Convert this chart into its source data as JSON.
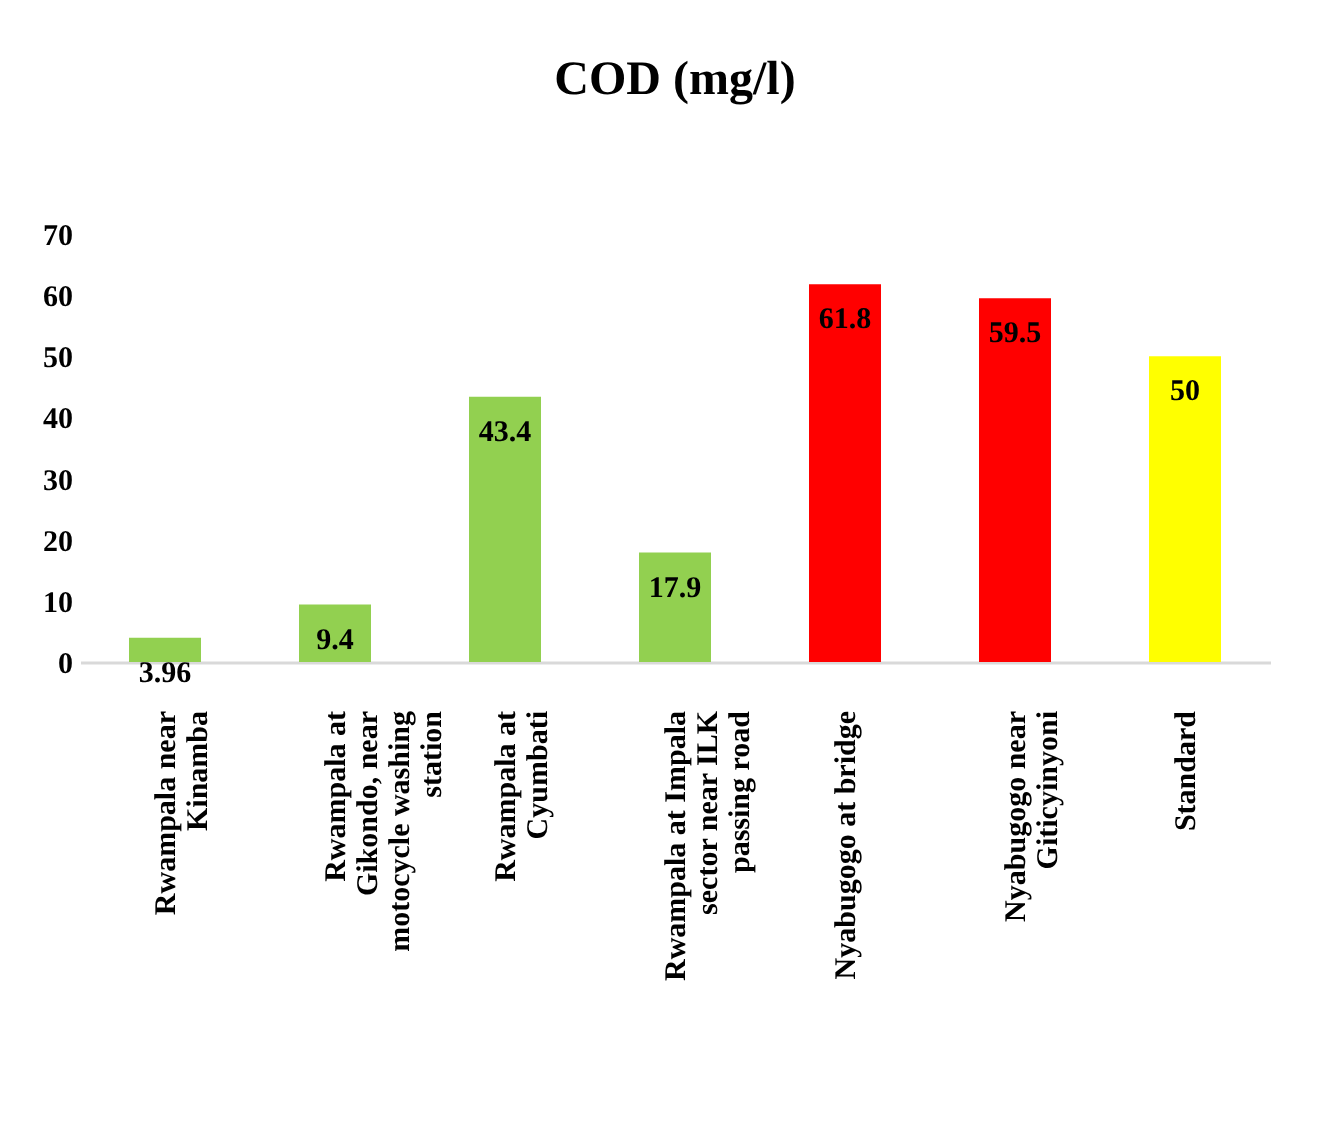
{
  "chart_data": {
    "type": "bar",
    "title": "COD (mg/l)",
    "categories": [
      "Rwampala near Kinamba",
      "Rwampala at Gikondo, near motocycle washing station",
      "Rwampala at Cyumbati",
      "Rwampala at Impala sector near ILK passing road",
      "Nyabugogo at bridge",
      "Nyabugogo near Giticyinyoni",
      "Standard"
    ],
    "values": [
      3.96,
      9.4,
      43.4,
      17.9,
      61.8,
      59.5,
      50
    ],
    "colors": [
      "#92d050",
      "#92d050",
      "#92d050",
      "#92d050",
      "#ff0000",
      "#ff0000",
      "#ffff00"
    ],
    "ylim": [
      0,
      70
    ],
    "yticks": [
      0,
      10,
      20,
      30,
      40,
      50,
      60,
      70
    ],
    "grid": false,
    "data_labels": true
  }
}
